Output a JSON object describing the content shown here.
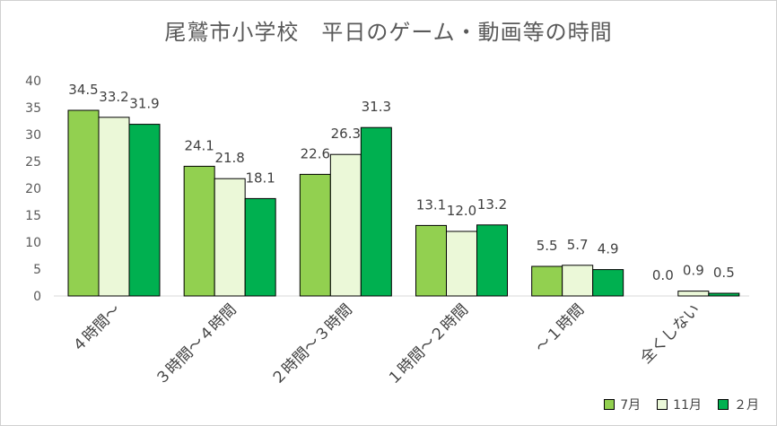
{
  "chart_data": {
    "type": "bar",
    "title": "尾鷲市小学校　平日のゲーム・動画等の時間",
    "categories": [
      "４時間～",
      "３時間～４時間",
      "２時間～３時間",
      "１時間～２時間",
      "～１時間",
      "全くしない"
    ],
    "series": [
      {
        "name": "7月",
        "color": "#92d050",
        "values": [
          34.5,
          24.1,
          22.6,
          13.1,
          5.5,
          0.0
        ]
      },
      {
        "name": "11月",
        "color": "#ebf8d8",
        "values": [
          33.2,
          21.8,
          26.3,
          12.0,
          5.7,
          0.9
        ]
      },
      {
        "name": "２月",
        "color": "#00b050",
        "values": [
          31.9,
          18.1,
          31.3,
          13.2,
          4.9,
          0.5
        ]
      }
    ],
    "ylim": [
      0,
      40
    ],
    "yticks": [
      0,
      5,
      10,
      15,
      20,
      25,
      30,
      35,
      40
    ],
    "grid": false,
    "legend": "bottom-right"
  }
}
